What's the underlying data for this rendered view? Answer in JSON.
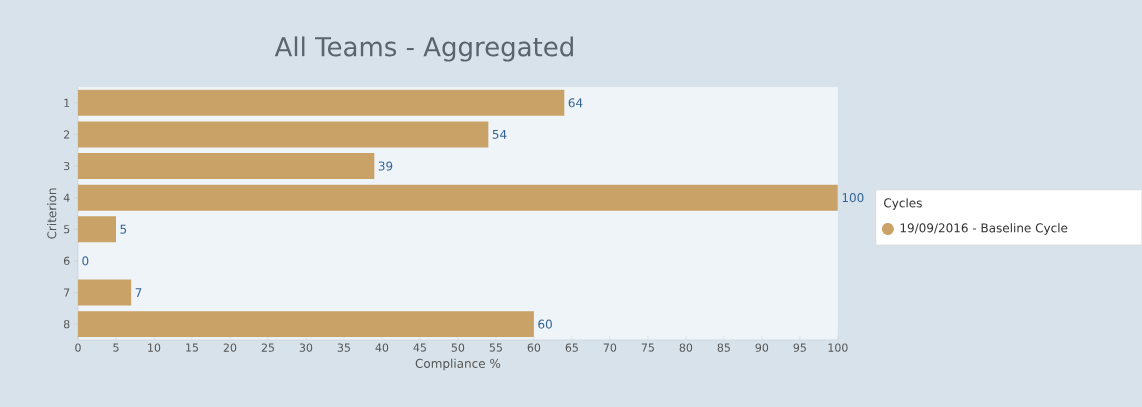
{
  "chart_data": {
    "type": "bar",
    "orientation": "horizontal",
    "title": "All Teams - Aggregated",
    "xlabel": "Compliance %",
    "ylabel": "Criterion",
    "legend_title": "Cycles",
    "categories": [
      "1",
      "2",
      "3",
      "4",
      "5",
      "6",
      "7",
      "8"
    ],
    "series": [
      {
        "name": "19/09/2016 - Baseline Cycle",
        "color": "#c8a266",
        "values": [
          64,
          54,
          39,
          100,
          5,
          0,
          7,
          60
        ]
      }
    ],
    "xlim": [
      0,
      100
    ],
    "xticks": [
      0,
      5,
      10,
      15,
      20,
      25,
      30,
      35,
      40,
      45,
      50,
      55,
      60,
      65,
      70,
      75,
      80,
      85,
      90,
      95,
      100
    ],
    "data_labels": true,
    "legend": "right",
    "grid": false
  }
}
